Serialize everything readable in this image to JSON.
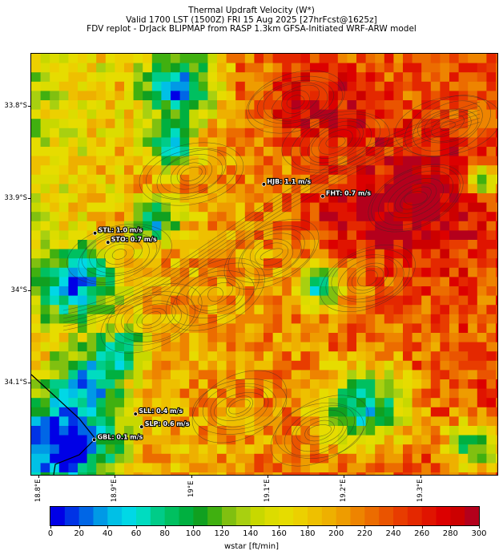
{
  "header": {
    "line1": "Thermal Updraft Velocity (W*)",
    "line2": "Valid 1700 LST (1500Z) FRI 15 Aug 2025 [27hrFcst@1625z]",
    "line3": "FDV replot - DrJack BLIPMAP from RASP 1.3km GFSA-Initiated WRF-ARW model"
  },
  "axes": {
    "y_ticks": [
      "33.8°S",
      "33.9°S",
      "34°S",
      "34.1°S"
    ],
    "x_ticks": [
      "18.8°E",
      "18.9°E",
      "19°E",
      "19.1°E",
      "19.2°E",
      "19.3°E"
    ]
  },
  "sites": [
    {
      "id": "HJB",
      "label": "HJB: 1.1 m/s",
      "lon": 19.095,
      "lat": -33.885
    },
    {
      "id": "FHT",
      "label": "FHT: 0.7 m/s",
      "lon": 19.172,
      "lat": -33.898
    },
    {
      "id": "STL",
      "label": "STL: 1.0 m/s",
      "lon": 18.874,
      "lat": -33.938
    },
    {
      "id": "STO",
      "label": "STO: 0.7 m/s",
      "lon": 18.891,
      "lat": -33.948
    },
    {
      "id": "SLL",
      "label": "SLL: 0.4 m/s",
      "lon": 18.927,
      "lat": -34.134
    },
    {
      "id": "SLP",
      "label": "SLP: 0.6 m/s",
      "lon": 18.935,
      "lat": -34.148
    },
    {
      "id": "GBL",
      "label": "GBL: 0.1 m/s",
      "lon": 18.873,
      "lat": -34.162
    }
  ],
  "colorbar": {
    "min": 0,
    "max": 300,
    "step": 10,
    "tick_labels": [
      "0",
      "20",
      "40",
      "60",
      "80",
      "100",
      "120",
      "140",
      "160",
      "180",
      "200",
      "220",
      "240",
      "260",
      "280",
      "300"
    ],
    "label": "wstar [ft/min]",
    "colors": [
      "#0000e6",
      "#0033e6",
      "#0066e6",
      "#0099e6",
      "#00c0e6",
      "#00d8e6",
      "#00dcc0",
      "#00cc88",
      "#00c060",
      "#00b040",
      "#10a020",
      "#40b010",
      "#80c010",
      "#a8d010",
      "#c8d800",
      "#dcdc00",
      "#e6dc00",
      "#ecd000",
      "#eec000",
      "#eeb000",
      "#ee9c00",
      "#ee8400",
      "#ec6c00",
      "#ea5400",
      "#e83c00",
      "#e42800",
      "#e01400",
      "#dc0000",
      "#cc0000",
      "#b4001c"
    ]
  }
}
